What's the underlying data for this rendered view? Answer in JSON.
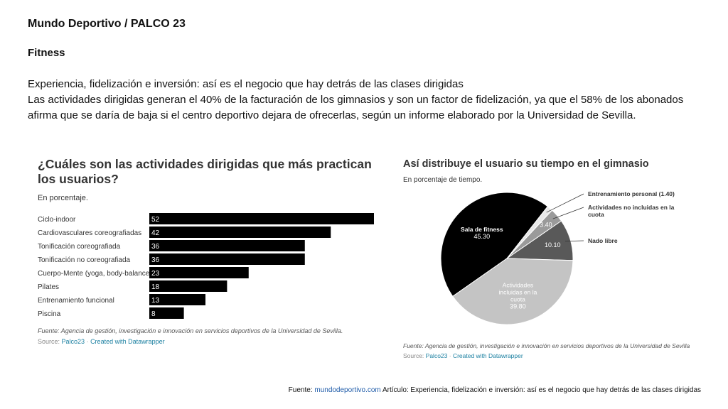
{
  "header": {
    "title": "Mundo Deportivo / PALCO 23",
    "section": "Fitness",
    "headline": "Experiencia, fidelización e inversión: así es el negocio que hay detrás de las clases dirigidas",
    "body": "Las actividades dirigidas generan el 40% de la facturación de los gimnasios y son un factor de fidelización, ya que el 58% de los abonados afirma que se daría de baja si el centro deportivo dejara de ofrecerlas, según un informe elaborado por la Universidad de Sevilla."
  },
  "chart_data": [
    {
      "type": "bar",
      "orientation": "horizontal",
      "title": "¿Cuáles son las actividades dirigidas que más practican los usuarios?",
      "subtitle": "En porcentaje.",
      "categories": [
        "Ciclo-indoor",
        "Cardiovasculares coreografiadas",
        "Tonificación coreografiada",
        "Tonificación no coreografiada",
        "Cuerpo-Mente (yoga, body-balance)",
        "Pilates",
        "Entrenamiento funcional",
        "Piscina"
      ],
      "values": [
        52,
        42,
        36,
        36,
        23,
        18,
        13,
        8
      ],
      "value_labels": [
        "52",
        "42",
        "36",
        "36",
        "23",
        "18",
        "13",
        "8"
      ],
      "xlim": [
        0,
        52
      ],
      "bar_color": "#000000",
      "label_color": "#ffffff",
      "note": "Fuente: Agencia de gestión, investigación e innovación en servicios deportivos de la Universidad de Sevilla.",
      "source_prefix": "Source: ",
      "source_link": "Palco23",
      "source_sep": " · ",
      "source_credit": "Created with Datawrapper"
    },
    {
      "type": "pie",
      "title": "Así distribuye el usuario su tiempo en el gimnasio",
      "subtitle": "En porcentaje de tiempo.",
      "slices": [
        {
          "label": "Sala de fitness",
          "value": 45.3,
          "value_label": "45.30",
          "color": "#000000",
          "text_color": "#ffffff",
          "label_lines": [
            "Sala de fitness"
          ]
        },
        {
          "label": "Entrenamiento personal (1.40)",
          "value": 1.4,
          "value_label": "",
          "color": "#e8e8e8",
          "text_color": "#333333",
          "label_lines": [
            "Entrenamiento personal (1.40)"
          ]
        },
        {
          "label": "Actividades no incluidas en la cuota",
          "value": 3.4,
          "value_label": "3.40",
          "color": "#9a9a9a",
          "text_color": "#ffffff",
          "label_lines": [
            "Actividades no incluidas en la",
            "cuota"
          ]
        },
        {
          "label": "Nado libre",
          "value": 10.1,
          "value_label": "10.10",
          "color": "#595959",
          "text_color": "#ffffff",
          "label_lines": [
            "Nado libre"
          ]
        },
        {
          "label": "Actividades incluidas en la cuota",
          "value": 39.8,
          "value_label": "39.80",
          "color": "#c4c4c4",
          "text_color": "#ffffff",
          "label_lines": [
            "Actividades",
            "incluidas en la",
            "cuota"
          ]
        }
      ],
      "start_angle_deg": 235,
      "note": "Fuente: Agencia de gestión, investigación e innovación en servicios deportivos de la Universidad de Sevilla",
      "source_prefix": "Source: ",
      "source_link": "Palco23",
      "source_sep": " · ",
      "source_credit": "Created with Datawrapper"
    }
  ],
  "footer": {
    "prefix": "Fuente: ",
    "link": "mundodeportivo.com",
    "text": " Artículo: Experiencia, fidelización e inversión: así es el negocio que hay detrás de las clases dirigidas"
  }
}
